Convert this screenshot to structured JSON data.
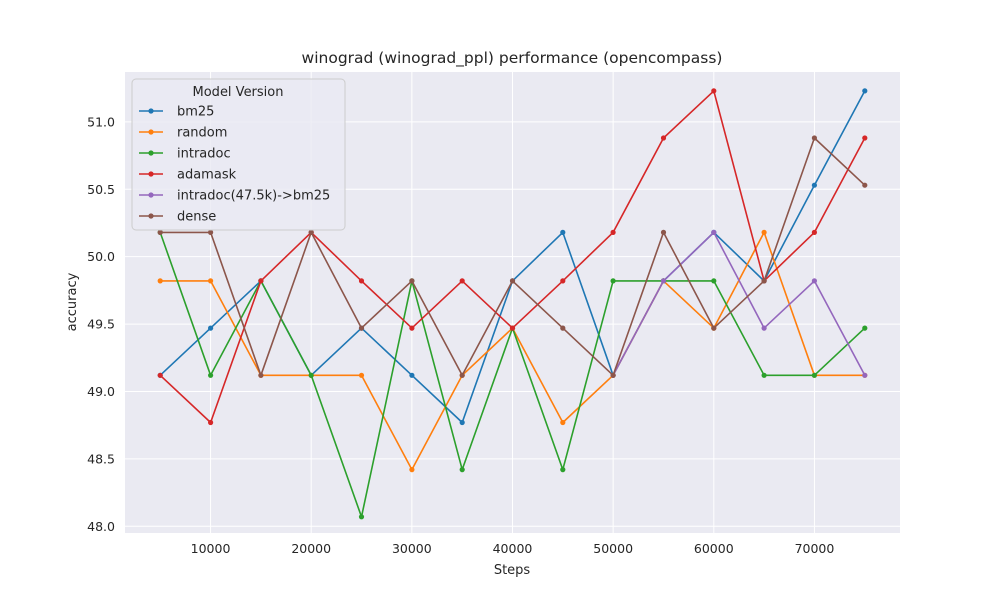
{
  "chart_data": {
    "type": "line",
    "title": "winograd (winograd_ppl) performance (opencompass)",
    "xlabel": "Steps",
    "ylabel": "accuracy",
    "xlim": [
      1500,
      78500
    ],
    "ylim": [
      47.95,
      51.37
    ],
    "xticks": [
      10000,
      20000,
      30000,
      40000,
      50000,
      60000,
      70000
    ],
    "xtick_labels": [
      "10000",
      "20000",
      "30000",
      "40000",
      "50000",
      "60000",
      "70000"
    ],
    "yticks": [
      48.0,
      48.5,
      49.0,
      49.5,
      50.0,
      50.5,
      51.0
    ],
    "ytick_labels": [
      "48.0",
      "48.5",
      "49.0",
      "49.5",
      "50.0",
      "50.5",
      "51.0"
    ],
    "grid": true,
    "legend": {
      "title": "Model Version",
      "position": "top-left"
    },
    "series": [
      {
        "name": "bm25",
        "color": "#1f77b4",
        "x": [
          5000,
          10000,
          15000,
          20000,
          25000,
          30000,
          35000,
          40000,
          45000,
          50000,
          55000,
          60000,
          65000,
          70000,
          75000
        ],
        "y": [
          49.12,
          49.47,
          49.82,
          49.12,
          49.47,
          49.12,
          48.77,
          49.82,
          50.18,
          49.12,
          49.82,
          50.18,
          49.82,
          50.53,
          51.23
        ]
      },
      {
        "name": "random",
        "color": "#ff7f0e",
        "x": [
          5000,
          10000,
          15000,
          20000,
          25000,
          30000,
          35000,
          40000,
          45000,
          50000,
          55000,
          60000,
          65000,
          70000,
          75000
        ],
        "y": [
          49.82,
          49.82,
          49.12,
          49.12,
          49.12,
          48.42,
          49.12,
          49.47,
          48.77,
          49.12,
          49.82,
          49.47,
          50.18,
          49.12,
          49.12
        ]
      },
      {
        "name": "intradoc",
        "color": "#2ca02c",
        "x": [
          5000,
          10000,
          15000,
          20000,
          25000,
          30000,
          35000,
          40000,
          45000,
          50000,
          55000,
          60000,
          65000,
          70000,
          75000
        ],
        "y": [
          50.18,
          49.12,
          49.82,
          49.12,
          48.07,
          49.82,
          48.42,
          49.47,
          48.42,
          49.82,
          49.82,
          49.82,
          49.12,
          49.12,
          49.47
        ]
      },
      {
        "name": "adamask",
        "color": "#d62728",
        "x": [
          5000,
          10000,
          15000,
          20000,
          25000,
          30000,
          35000,
          40000,
          45000,
          50000,
          55000,
          60000,
          65000,
          70000,
          75000
        ],
        "y": [
          49.12,
          48.77,
          49.82,
          50.18,
          49.82,
          49.47,
          49.82,
          49.47,
          49.82,
          50.18,
          50.88,
          51.23,
          49.82,
          50.18,
          50.88
        ]
      },
      {
        "name": "intradoc(47.5k)->bm25",
        "color": "#9467bd",
        "x": [
          50000,
          55000,
          60000,
          65000,
          70000,
          75000
        ],
        "y": [
          49.12,
          49.82,
          50.18,
          49.47,
          49.82,
          49.12
        ]
      },
      {
        "name": "dense",
        "color": "#8c564b",
        "x": [
          5000,
          10000,
          15000,
          20000,
          25000,
          30000,
          35000,
          40000,
          45000,
          50000,
          55000,
          60000,
          65000,
          70000,
          75000
        ],
        "y": [
          50.18,
          50.18,
          49.12,
          50.18,
          49.47,
          49.82,
          49.12,
          49.82,
          49.47,
          49.12,
          50.18,
          49.47,
          49.82,
          50.88,
          50.53
        ]
      }
    ]
  }
}
